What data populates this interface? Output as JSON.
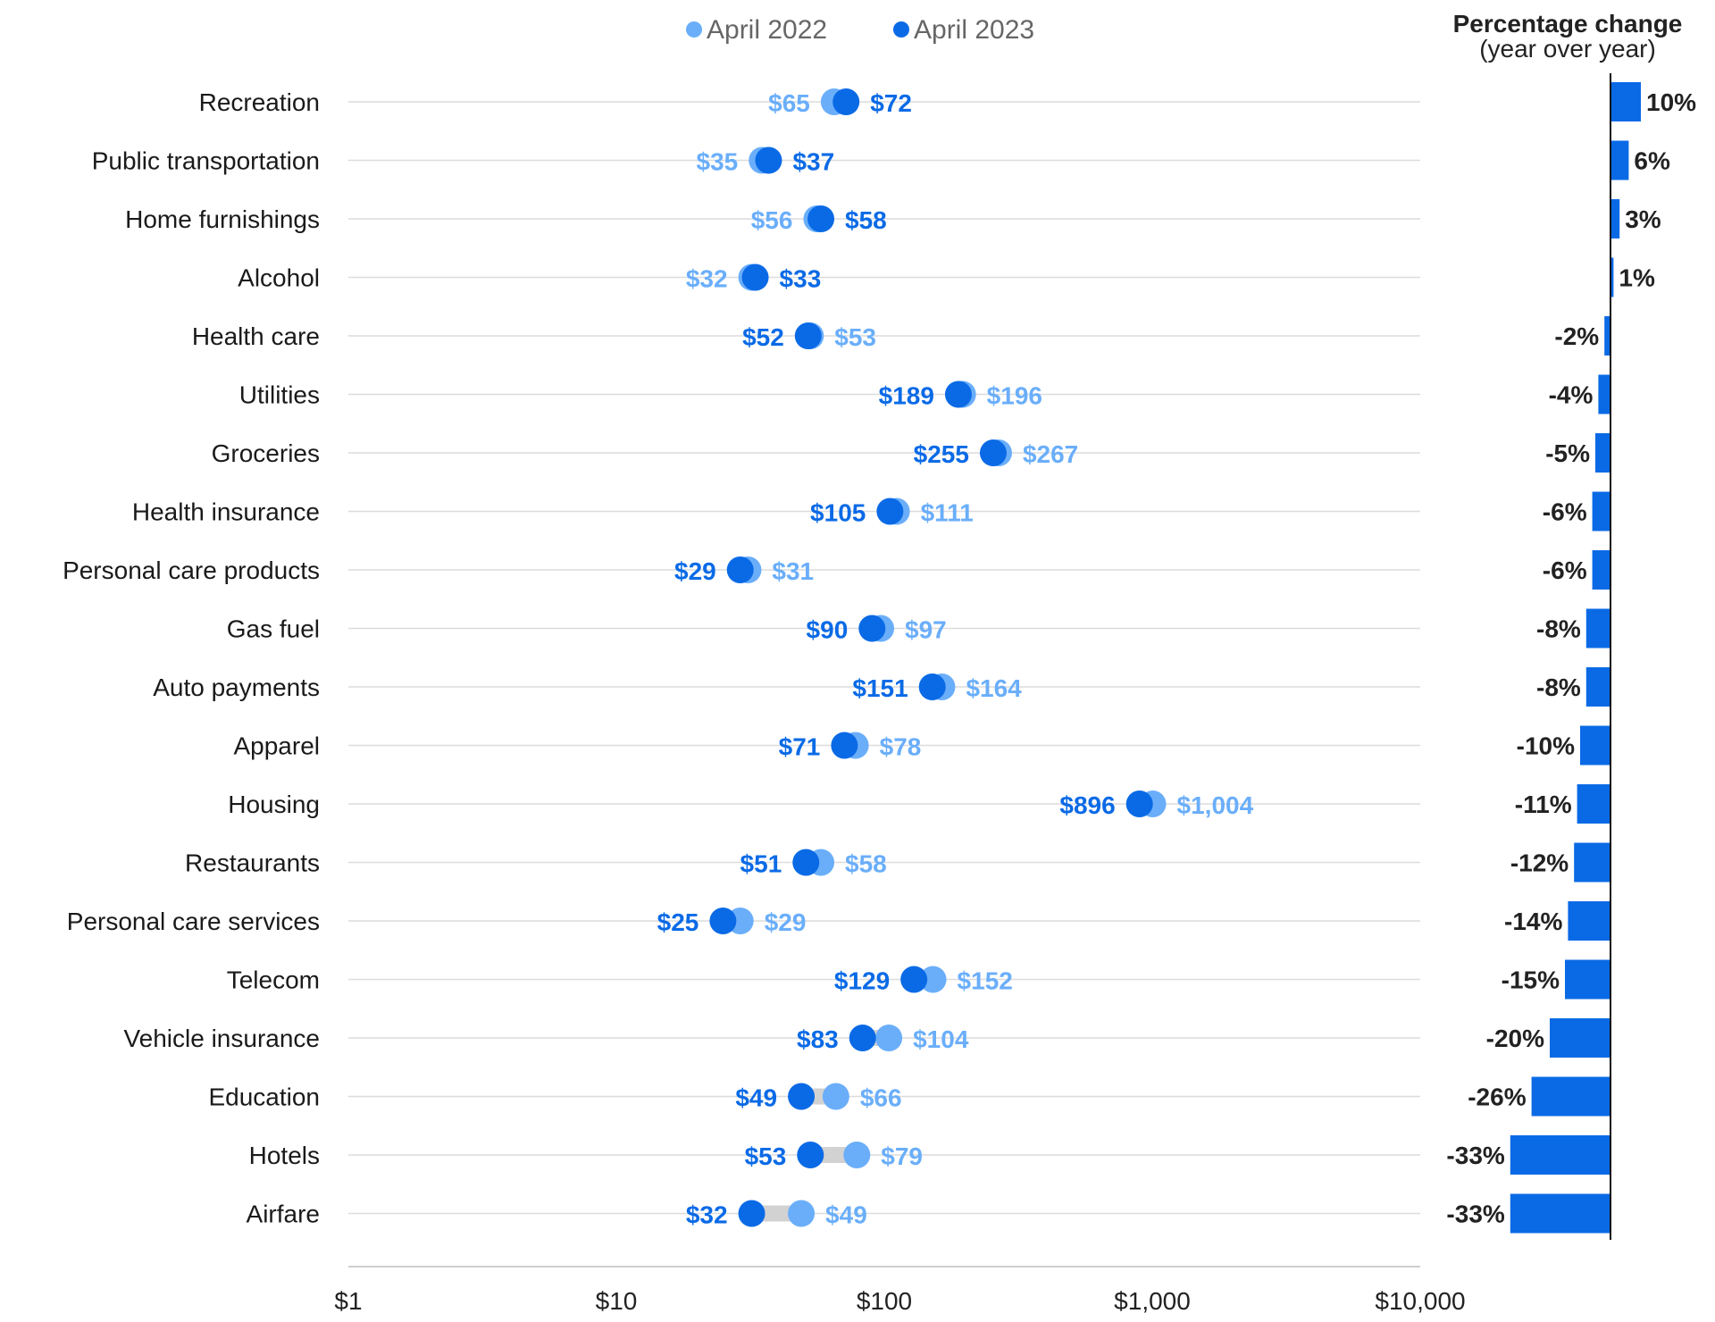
{
  "chart_data": [
    {
      "type": "scatter",
      "subtype": "dumbbell",
      "x_scale": "log",
      "xlim": [
        1,
        10000
      ],
      "x_ticks": [
        {
          "value": 1,
          "label": "$1"
        },
        {
          "value": 10,
          "label": "$10"
        },
        {
          "value": 100,
          "label": "$100"
        },
        {
          "value": 1000,
          "label": "$1,000"
        },
        {
          "value": 10000,
          "label": "$10,000"
        }
      ],
      "grid": true,
      "legend_position": "top",
      "categories": [
        "Recreation",
        "Public transportation",
        "Home furnishings",
        "Alcohol",
        "Health care",
        "Utilities",
        "Groceries",
        "Health insurance",
        "Personal care products",
        "Gas fuel",
        "Auto payments",
        "Apparel",
        "Housing",
        "Restaurants",
        "Personal care services",
        "Telecom",
        "Vehicle insurance",
        "Education",
        "Hotels",
        "Airfare"
      ],
      "series": [
        {
          "name": "April 2022",
          "color": "#6aaefa",
          "values": [
            65,
            35,
            56,
            32,
            53,
            196,
            267,
            111,
            31,
            97,
            164,
            78,
            1004,
            58,
            29,
            152,
            104,
            66,
            79,
            49
          ],
          "labels": [
            "$65",
            "$35",
            "$56",
            "$32",
            "$53",
            "$196",
            "$267",
            "$111",
            "$31",
            "$97",
            "$164",
            "$78",
            "$1,004",
            "$58",
            "$29",
            "$152",
            "$104",
            "$66",
            "$79",
            "$49"
          ]
        },
        {
          "name": "April 2023",
          "color": "#0a6ae6",
          "values": [
            72,
            37,
            58,
            33,
            52,
            189,
            255,
            105,
            29,
            90,
            151,
            71,
            896,
            51,
            25,
            129,
            83,
            49,
            53,
            32
          ],
          "labels": [
            "$72",
            "$37",
            "$58",
            "$33",
            "$52",
            "$189",
            "$255",
            "$105",
            "$29",
            "$90",
            "$151",
            "$71",
            "$896",
            "$51",
            "$25",
            "$129",
            "$83",
            "$49",
            "$53",
            "$32"
          ]
        }
      ]
    },
    {
      "type": "bar",
      "orientation": "horizontal",
      "title": "Percentage change",
      "subtitle": "(year over year)",
      "color": "#0a6ae6",
      "categories": [
        "Recreation",
        "Public transportation",
        "Home furnishings",
        "Alcohol",
        "Health care",
        "Utilities",
        "Groceries",
        "Health insurance",
        "Personal care products",
        "Gas fuel",
        "Auto payments",
        "Apparel",
        "Housing",
        "Restaurants",
        "Personal care services",
        "Telecom",
        "Vehicle insurance",
        "Education",
        "Hotels",
        "Airfare"
      ],
      "values": [
        10,
        6,
        3,
        1,
        -2,
        -4,
        -5,
        -6,
        -6,
        -8,
        -8,
        -10,
        -11,
        -12,
        -14,
        -15,
        -20,
        -26,
        -33,
        -33
      ],
      "labels": [
        "10%",
        "6%",
        "3%",
        "1%",
        "-2%",
        "-4%",
        "-5%",
        "-6%",
        "-6%",
        "-8%",
        "-8%",
        "-10%",
        "-11%",
        "-12%",
        "-14%",
        "-15%",
        "-20%",
        "-26%",
        "-33%",
        "-33%"
      ]
    }
  ]
}
